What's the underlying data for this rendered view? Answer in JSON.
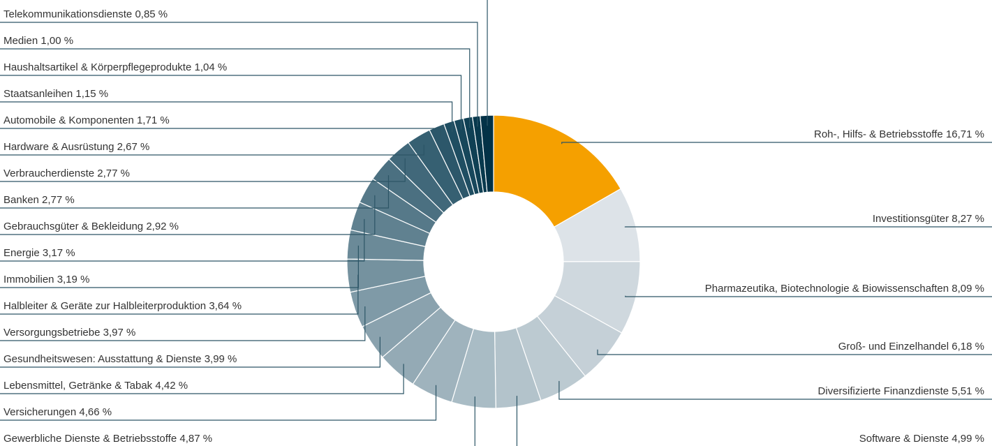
{
  "chart_data": {
    "type": "donut",
    "categories": [
      "Roh-, Hilfs- & Betriebsstoffe",
      "Investitionsgüter",
      "Pharmazeutika, Biotechnologie & Biowissenschaften",
      "Groß- und Einzelhandel",
      "Diversifizierte Finanzdienste",
      "Software & Dienste",
      "Gewerbliche Dienste & Betriebsstoffe",
      "Versicherungen",
      "Lebensmittel, Getränke & Tabak",
      "Gesundheitswesen: Ausstattung & Dienste",
      "Versorgungsbetriebe",
      "Halbleiter & Geräte zur Halbleiterproduktion",
      "Immobilien",
      "Energie",
      "Gebrauchsgüter & Bekleidung",
      "Banken",
      "Verbraucherdienste",
      "Hardware & Ausrüstung",
      "Automobile & Komponenten",
      "Staatsanleihen",
      "Haushaltsartikel & Körperpflegeprodukte",
      "Medien",
      "Telekommunikationsdienste",
      null
    ],
    "values": [
      16.71,
      8.27,
      8.09,
      6.18,
      5.51,
      4.99,
      4.87,
      4.66,
      4.42,
      3.99,
      3.97,
      3.64,
      3.19,
      3.17,
      2.92,
      2.77,
      2.77,
      2.67,
      1.71,
      1.15,
      1.04,
      1.0,
      0.85,
      1.46
    ],
    "value_labels": [
      "16,71 %",
      "8,27 %",
      "8,09 %",
      "6,18 %",
      "5,51 %",
      "4,99 %",
      "4,87 %",
      "4,66 %",
      "4,42 %",
      "3,99 %",
      "3,97 %",
      "3,64 %",
      "3,19 %",
      "3,17 %",
      "2,92 %",
      "2,77 %",
      "2,77 %",
      "2,67 %",
      "1,71 %",
      "1,15 %",
      "1,04 %",
      "1,00 %",
      "0,85 %",
      null
    ],
    "colors": [
      "#f5a000",
      "#dde3e8",
      "#cfd8de",
      "#c5d0d7",
      "#bccad1",
      "#b3c3cb",
      "#a9bcc5",
      "#9fb3bd",
      "#94aab5",
      "#8aa2ae",
      "#7f9aa7",
      "#75929f",
      "#6b8a98",
      "#608190",
      "#567989",
      "#4b7081",
      "#41687a",
      "#366072",
      "#2c576a",
      "#1f4e62",
      "#17475b",
      "#0f4054",
      "#08394d",
      "#033247"
    ]
  }
}
